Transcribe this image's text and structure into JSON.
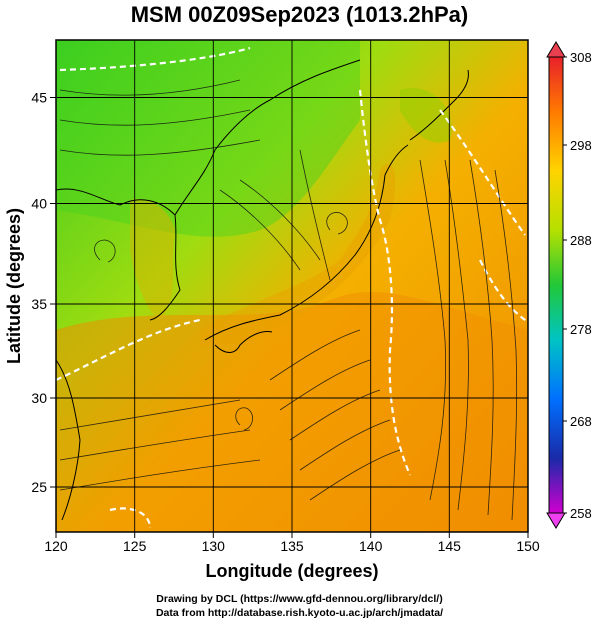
{
  "title": "MSM 00Z09Sep2023 (1013.2hPa)",
  "map": {
    "x_axis": {
      "label": "Longitude (degrees)",
      "range": [
        120,
        150
      ],
      "ticks": [
        "120",
        "125",
        "130",
        "135",
        "140",
        "145",
        "150"
      ]
    },
    "y_axis": {
      "label": "Latitude  (degrees)",
      "range": [
        22.5,
        47.6
      ],
      "ticks": [
        "25",
        "30",
        "35",
        "40",
        "45"
      ]
    },
    "grid": true,
    "field": "temperature (K), streamlines of surface wind"
  },
  "colorbar": {
    "min": 258,
    "max": 308,
    "labels": [
      "308",
      "298",
      "288",
      "278",
      "268",
      "258"
    ],
    "colors": [
      "#ff1a1a",
      "#ff7a00",
      "#ffcc00",
      "#ccff00",
      "#33cc33",
      "#00c0c0",
      "#0070ff",
      "#1a1aaa",
      "#cc00cc"
    ]
  },
  "credits": {
    "line1": "Drawing by DCL (https://www.gfd-dennou.org/library/dcl/)",
    "line2": "Data from http://database.rish.kyoto-u.ac.jp/arch/jmadata/"
  }
}
